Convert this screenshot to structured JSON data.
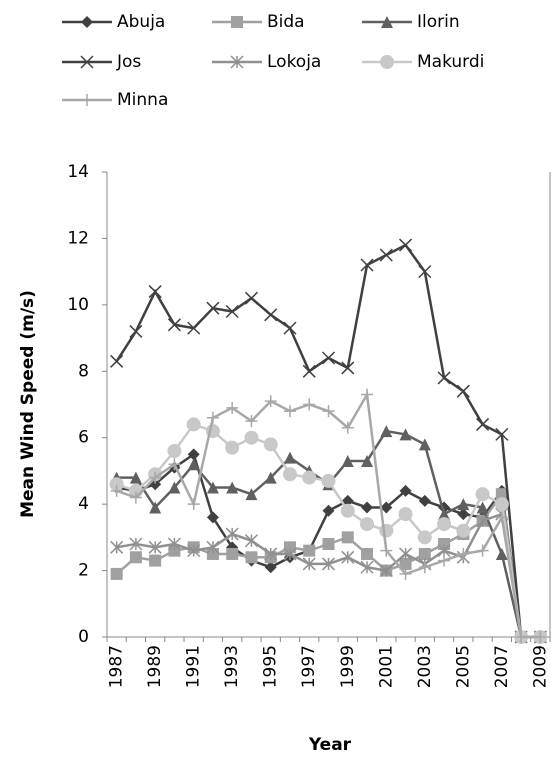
{
  "chart_data": {
    "type": "line",
    "x_label": "Year",
    "y_label": "Mean Wind Speed (m/s)",
    "categories": [
      "1987",
      null,
      "1989",
      null,
      "1991",
      null,
      "1993",
      null,
      "1995",
      null,
      "1997",
      null,
      "1999",
      null,
      "2001",
      null,
      "2003",
      null,
      "2005",
      null,
      "2007",
      null,
      "2009"
    ],
    "ylim": [
      0,
      14
    ],
    "yticks": [
      0,
      2,
      4,
      6,
      8,
      10,
      12,
      14
    ],
    "grid": false,
    "legend": "top",
    "series": [
      {
        "name": "Abuja",
        "color": "#404040",
        "marker": "diamond",
        "values": [
          4.5,
          4.4,
          4.6,
          5.1,
          5.5,
          3.6,
          2.7,
          2.3,
          2.1,
          2.4,
          2.6,
          3.8,
          4.1,
          3.9,
          3.9,
          4.4,
          4.1,
          3.9,
          3.7,
          3.6,
          4.4,
          0,
          0
        ]
      },
      {
        "name": "Bida",
        "color": "#a0a0a0",
        "marker": "square",
        "values": [
          1.9,
          2.4,
          2.3,
          2.6,
          2.7,
          2.5,
          2.5,
          2.4,
          2.4,
          2.7,
          2.6,
          2.8,
          3.0,
          2.5,
          2.0,
          2.2,
          2.5,
          2.8,
          3.1,
          3.5,
          4.3,
          0,
          0
        ]
      },
      {
        "name": "Ilorin",
        "color": "#606060",
        "marker": "triangle",
        "values": [
          4.8,
          4.8,
          3.9,
          4.5,
          5.2,
          4.5,
          4.5,
          4.3,
          4.8,
          5.4,
          5.0,
          4.6,
          5.3,
          5.3,
          6.2,
          6.1,
          5.8,
          3.7,
          4.0,
          3.9,
          2.5,
          0,
          0
        ]
      },
      {
        "name": "Jos",
        "color": "#404040",
        "marker": "x",
        "values": [
          8.3,
          9.2,
          10.4,
          9.4,
          9.3,
          9.9,
          9.8,
          10.2,
          9.7,
          9.3,
          8.0,
          8.4,
          8.1,
          11.2,
          11.5,
          11.8,
          11.0,
          7.8,
          7.4,
          6.4,
          6.1,
          0,
          0
        ]
      },
      {
        "name": "Lokoja",
        "color": "#909090",
        "marker": "star",
        "values": [
          2.7,
          2.8,
          2.7,
          2.8,
          2.6,
          2.7,
          3.1,
          2.9,
          2.5,
          2.5,
          2.2,
          2.2,
          2.4,
          2.1,
          2.0,
          2.5,
          2.2,
          2.6,
          2.4,
          3.5,
          3.7,
          0,
          0
        ]
      },
      {
        "name": "Makurdi",
        "color": "#c8c8c8",
        "marker": "circle",
        "values": [
          4.6,
          4.4,
          4.9,
          5.6,
          6.4,
          6.2,
          5.7,
          6.0,
          5.8,
          4.9,
          4.8,
          4.7,
          3.8,
          3.4,
          3.2,
          3.7,
          3.0,
          3.4,
          3.2,
          4.3,
          4.0,
          0,
          0
        ]
      },
      {
        "name": "Minna",
        "color": "#a8a8a8",
        "marker": "plus",
        "values": [
          4.4,
          4.2,
          4.8,
          5.2,
          4.0,
          6.6,
          6.9,
          6.5,
          7.1,
          6.8,
          7.0,
          6.8,
          6.3,
          7.3,
          2.6,
          1.9,
          2.1,
          2.3,
          2.5,
          2.6,
          3.6,
          0,
          0
        ]
      }
    ]
  }
}
